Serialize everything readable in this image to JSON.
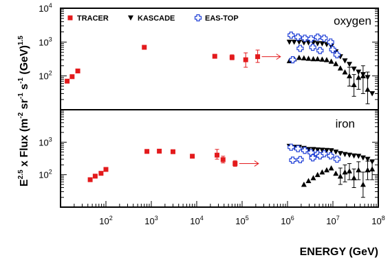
{
  "chart_data": {
    "type": "scatter",
    "xlabel": "ENERGY (GeV)",
    "ylabel": "E^2.5 x Flux (m^-2 sr^-1 s^-1 (GeV)^1.5)",
    "ylabel_parts": {
      "base": "E",
      "exp1": "2.5",
      "mid": " x Flux (m",
      "exp2": "-2",
      "mid2": " sr",
      "exp3": "-1",
      "mid3": " s",
      "exp4": "-1",
      "mid4": " (GeV)",
      "exp5": "1.5"
    },
    "x_scale": "log",
    "y_scale": "log",
    "xlim": [
      10,
      100000000
    ],
    "x_tick_labels": [
      {
        "base": "10",
        "exp": "2",
        "value": 100
      },
      {
        "base": "10",
        "exp": "3",
        "value": 1000
      },
      {
        "base": "10",
        "exp": "4",
        "value": 10000
      },
      {
        "base": "10",
        "exp": "5",
        "value": 100000
      },
      {
        "base": "10",
        "exp": "6",
        "value": 1000000
      },
      {
        "base": "10",
        "exp": "7",
        "value": 10000000
      },
      {
        "base": "10",
        "exp": "8",
        "value": 100000000
      }
    ],
    "legend": [
      {
        "name": "TRACER",
        "marker": "square",
        "color": "#e31a1c"
      },
      {
        "name": "KASCADE",
        "marker": "triangle-down",
        "color": "#000000"
      },
      {
        "name": "EAS-TOP",
        "marker": "open-cross",
        "color": "#1f3fd6"
      }
    ],
    "panels": [
      {
        "label": "oxygen",
        "ylim": [
          10,
          10000
        ],
        "y_tick_labels": [
          {
            "base": "10",
            "exp": "2",
            "value": 100
          },
          {
            "base": "10",
            "exp": "3",
            "value": 1000
          },
          {
            "base": "10",
            "exp": "4",
            "value": 10000
          }
        ],
        "series": [
          {
            "name": "TRACER",
            "marker": "square",
            "color": "#e31a1c",
            "points": [
              {
                "x": 14,
                "y": 70
              },
              {
                "x": 18,
                "y": 95
              },
              {
                "x": 24,
                "y": 140
              },
              {
                "x": 700,
                "y": 700
              },
              {
                "x": 25000,
                "y": 380
              },
              {
                "x": 60000,
                "y": 350,
                "err": [
                  300,
                  420
                ]
              },
              {
                "x": 120000,
                "y": 300,
                "err": [
                  180,
                  480
                ]
              },
              {
                "x": 220000,
                "y": 370,
                "err": [
                  250,
                  580
                ]
              }
            ],
            "limit_arrow": {
              "x": 220000,
              "y": 370,
              "x_end": 700000
            }
          },
          {
            "name": "KASCADE",
            "marker": "triangle-down",
            "color": "#000000",
            "points": [
              {
                "x": 1100000,
                "y": 1000
              },
              {
                "x": 1400000,
                "y": 1000
              },
              {
                "x": 1800000,
                "y": 1000
              },
              {
                "x": 2300000,
                "y": 950
              },
              {
                "x": 2900000,
                "y": 950
              },
              {
                "x": 3700000,
                "y": 950
              },
              {
                "x": 4600000,
                "y": 900
              },
              {
                "x": 5800000,
                "y": 900
              },
              {
                "x": 7300000,
                "y": 850
              },
              {
                "x": 9200000,
                "y": 750
              },
              {
                "x": 11600000,
                "y": 520
              },
              {
                "x": 14600000,
                "y": 370
              },
              {
                "x": 18400000,
                "y": 280
              },
              {
                "x": 23100000,
                "y": 220
              },
              {
                "x": 29100000,
                "y": 160
              },
              {
                "x": 36700000,
                "y": 130
              },
              {
                "x": 46200000,
                "y": 110
              },
              {
                "x": 58200000,
                "y": 90
              },
              {
                "x": 73300000,
                "y": 30
              }
            ]
          },
          {
            "name": "KASCADE",
            "marker": "triangle-up",
            "color": "#000000",
            "points": [
              {
                "x": 1100000,
                "y": 280
              },
              {
                "x": 1400000,
                "y": 320
              },
              {
                "x": 1800000,
                "y": 350
              },
              {
                "x": 2300000,
                "y": 340
              },
              {
                "x": 2900000,
                "y": 330
              },
              {
                "x": 3700000,
                "y": 320
              },
              {
                "x": 4600000,
                "y": 320
              },
              {
                "x": 5800000,
                "y": 310
              },
              {
                "x": 7300000,
                "y": 300
              },
              {
                "x": 9200000,
                "y": 270
              },
              {
                "x": 11600000,
                "y": 230
              },
              {
                "x": 14600000,
                "y": 170
              },
              {
                "x": 18400000,
                "y": 130
              },
              {
                "x": 23100000,
                "y": 100,
                "err": [
                  50,
                  180
                ]
              },
              {
                "x": 29100000,
                "y": 55,
                "err": [
                  25,
                  110
                ]
              },
              {
                "x": 36700000,
                "y": 90,
                "err": [
                  40,
                  150
                ]
              },
              {
                "x": 46200000,
                "y": 100,
                "err": [
                  30,
                  200
                ]
              },
              {
                "x": 58200000,
                "y": 40,
                "err": [
                  15,
                  130
                ]
              }
            ]
          },
          {
            "name": "EAS-TOP",
            "marker": "open-cross",
            "color": "#1f3fd6",
            "points": [
              {
                "x": 1200000,
                "y": 1600
              },
              {
                "x": 1700000,
                "y": 1400
              },
              {
                "x": 2400000,
                "y": 1300
              },
              {
                "x": 3300000,
                "y": 1250
              },
              {
                "x": 4600000,
                "y": 1400
              },
              {
                "x": 6400000,
                "y": 1300
              },
              {
                "x": 8900000,
                "y": 1000
              },
              {
                "x": 12300000,
                "y": 420
              },
              {
                "x": 1300000,
                "y": 300
              },
              {
                "x": 1900000,
                "y": 650
              },
              {
                "x": 3600000,
                "y": 700
              },
              {
                "x": 5200000,
                "y": 560
              },
              {
                "x": 9900000,
                "y": 600
              }
            ]
          }
        ]
      },
      {
        "label": "iron",
        "ylim": [
          10,
          10000
        ],
        "y_tick_labels": [
          {
            "base": "10",
            "exp": "2",
            "value": 100
          },
          {
            "base": "10",
            "exp": "3",
            "value": 1000
          }
        ],
        "series": [
          {
            "name": "TRACER",
            "marker": "square",
            "color": "#e31a1c",
            "points": [
              {
                "x": 45,
                "y": 70
              },
              {
                "x": 58,
                "y": 90
              },
              {
                "x": 78,
                "y": 110
              },
              {
                "x": 100,
                "y": 145
              },
              {
                "x": 800,
                "y": 520
              },
              {
                "x": 1500,
                "y": 530
              },
              {
                "x": 3000,
                "y": 510
              },
              {
                "x": 8000,
                "y": 370
              },
              {
                "x": 28000,
                "y": 400,
                "err": [
                  300,
                  600
                ]
              },
              {
                "x": 38000,
                "y": 290,
                "err": [
                  230,
                  370
                ]
              },
              {
                "x": 70000,
                "y": 220,
                "err": [
                  180,
                  270
                ]
              }
            ],
            "limit_arrow": {
              "x": 70000,
              "y": 220,
              "x_end": 230000
            }
          },
          {
            "name": "KASCADE",
            "marker": "triangle-down",
            "color": "#000000",
            "points": [
              {
                "x": 1100000,
                "y": 750
              },
              {
                "x": 1400000,
                "y": 700
              },
              {
                "x": 1800000,
                "y": 700
              },
              {
                "x": 2300000,
                "y": 650
              },
              {
                "x": 2900000,
                "y": 600
              },
              {
                "x": 3700000,
                "y": 600
              },
              {
                "x": 4600000,
                "y": 580
              },
              {
                "x": 5800000,
                "y": 570
              },
              {
                "x": 7300000,
                "y": 560
              },
              {
                "x": 9200000,
                "y": 550
              },
              {
                "x": 11600000,
                "y": 500
              },
              {
                "x": 14600000,
                "y": 450
              },
              {
                "x": 18400000,
                "y": 420
              },
              {
                "x": 23100000,
                "y": 400
              },
              {
                "x": 29100000,
                "y": 380
              },
              {
                "x": 36700000,
                "y": 370
              },
              {
                "x": 46200000,
                "y": 330
              },
              {
                "x": 58200000,
                "y": 300
              },
              {
                "x": 73300000,
                "y": 250
              }
            ]
          },
          {
            "name": "KASCADE",
            "marker": "triangle-up",
            "color": "#000000",
            "points": [
              {
                "x": 2300000,
                "y": 50
              },
              {
                "x": 2900000,
                "y": 65
              },
              {
                "x": 3700000,
                "y": 80
              },
              {
                "x": 4600000,
                "y": 100
              },
              {
                "x": 5800000,
                "y": 120
              },
              {
                "x": 7300000,
                "y": 140
              },
              {
                "x": 9200000,
                "y": 160
              },
              {
                "x": 11600000,
                "y": 110
              },
              {
                "x": 14600000,
                "y": 90,
                "err": [
                  50,
                  160
                ]
              },
              {
                "x": 18400000,
                "y": 120,
                "err": [
                  60,
                  200
                ]
              },
              {
                "x": 23100000,
                "y": 130,
                "err": [
                  70,
                  220
                ]
              },
              {
                "x": 29100000,
                "y": 80,
                "err": [
                  40,
                  150
                ]
              },
              {
                "x": 36700000,
                "y": 140,
                "err": [
                  70,
                  250
                ]
              },
              {
                "x": 46200000,
                "y": 50,
                "err": [
                  20,
                  120
                ]
              },
              {
                "x": 58200000,
                "y": 140,
                "err": [
                  70,
                  260
                ]
              },
              {
                "x": 73300000,
                "y": 150,
                "err": [
                  70,
                  260
                ]
              }
            ]
          },
          {
            "name": "EAS-TOP",
            "marker": "open-cross",
            "color": "#1f3fd6",
            "points": [
              {
                "x": 1200000,
                "y": 700
              },
              {
                "x": 1700000,
                "y": 630
              },
              {
                "x": 2400000,
                "y": 560
              },
              {
                "x": 3300000,
                "y": 480
              },
              {
                "x": 4600000,
                "y": 430
              },
              {
                "x": 6400000,
                "y": 440
              },
              {
                "x": 8900000,
                "y": 380
              },
              {
                "x": 12300000,
                "y": 300
              },
              {
                "x": 1300000,
                "y": 280
              },
              {
                "x": 1900000,
                "y": 290
              },
              {
                "x": 3600000,
                "y": 330
              },
              {
                "x": 5200000,
                "y": 380
              }
            ]
          }
        ]
      }
    ]
  }
}
